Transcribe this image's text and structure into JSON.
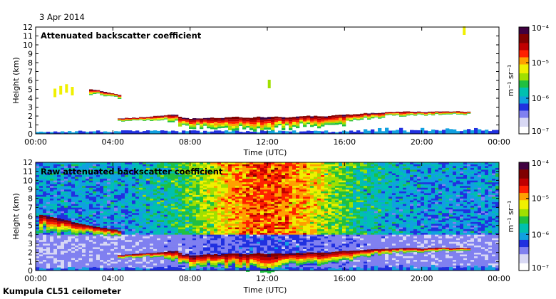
{
  "date_label": "3 Apr 2014",
  "instrument_label": "Kumpula CL51 ceilometer",
  "colors": {
    "colormap": [
      "#ffffff",
      "#d8d8f4",
      "#8080f0",
      "#2030e0",
      "#10a0e0",
      "#00c0b0",
      "#20c040",
      "#a0e000",
      "#f0f000",
      "#ffa000",
      "#ff2000",
      "#c00000",
      "#800000",
      "#400040"
    ],
    "frame": "#000000"
  },
  "chart_data": [
    {
      "type": "heatmap",
      "title": "Attenuated backscatter coefficient",
      "xlabel": "Time (UTC)",
      "ylabel": "Height (km)",
      "x_ticks": [
        "00:00",
        "04:00",
        "08:00",
        "12:00",
        "16:00",
        "20:00",
        "00:00"
      ],
      "y_ticks": [
        "0",
        "1",
        "2",
        "3",
        "4",
        "5",
        "6",
        "7",
        "8",
        "9",
        "10",
        "11",
        "12"
      ],
      "xlim_hours": [
        0,
        24
      ],
      "ylim_km": [
        0,
        12
      ],
      "colorbar": {
        "label": "m⁻¹ sr⁻¹",
        "scale": "log",
        "range": [
          1e-07,
          0.0001
        ],
        "tick_labels": [
          "10⁻⁴",
          "10⁻⁵",
          "10⁻⁶",
          "10⁻⁷"
        ]
      },
      "layers": [
        {
          "hours": [
            2.9,
            3.2,
            3.4,
            3.6,
            3.9,
            4.1,
            4.3
          ],
          "top_km": [
            5.0,
            4.9,
            4.8,
            4.7,
            4.6,
            4.5,
            4.4
          ],
          "thickness_km": [
            0.5,
            0.5,
            0.45,
            0.45,
            0.4,
            0.4,
            0.35
          ]
        },
        {
          "hours": [
            4.3,
            5.0,
            5.8,
            6.3,
            6.8,
            7.2,
            7.6,
            8.0,
            8.5,
            9.0,
            9.5,
            10.0,
            10.5,
            11.0,
            11.5,
            12.0,
            12.5,
            13.0,
            13.5,
            14.0,
            14.5,
            15.0,
            15.5,
            16.0,
            16.5,
            17.0,
            17.5,
            18.0,
            18.5,
            19.0,
            19.5,
            20.0,
            20.5,
            21.0,
            21.5,
            22.0,
            22.5
          ],
          "top_km": [
            1.7,
            1.8,
            1.9,
            2.0,
            2.1,
            2.2,
            1.8,
            1.7,
            1.75,
            1.8,
            1.8,
            1.85,
            1.9,
            1.8,
            1.9,
            1.85,
            1.9,
            1.85,
            1.95,
            2.0,
            2.0,
            1.95,
            2.1,
            2.15,
            2.2,
            2.3,
            2.35,
            2.4,
            2.45,
            2.5,
            2.5,
            2.45,
            2.5,
            2.55,
            2.5,
            2.5,
            2.45
          ],
          "thickness_km": [
            0.25,
            0.3,
            0.35,
            0.45,
            0.6,
            0.9,
            1.0,
            1.1,
            1.0,
            1.0,
            1.2,
            1.4,
            1.3,
            1.5,
            1.5,
            1.7,
            1.4,
            1.2,
            1.1,
            1.0,
            1.1,
            1.2,
            1.2,
            1.0,
            0.8,
            0.7,
            0.55,
            0.5,
            0.45,
            0.45,
            0.45,
            0.4,
            0.35,
            0.3,
            0.3,
            0.3,
            0.25
          ]
        }
      ],
      "scatter": [
        {
          "hours": [
            1.0,
            1.3,
            1.6,
            1.9
          ],
          "heights_km": [
            4.6,
            4.9,
            5.1,
            4.8
          ]
        },
        {
          "hours": [
            12.1
          ],
          "heights_km": [
            5.6
          ]
        },
        {
          "hours": [
            22.2
          ],
          "heights_km": [
            11.6
          ]
        }
      ]
    },
    {
      "type": "heatmap",
      "title": "Raw attenuated backscatter coefficient",
      "xlabel": "Time (UTC)",
      "ylabel": "Height (km)",
      "x_ticks": [
        "00:00",
        "04:00",
        "08:00",
        "12:00",
        "16:00",
        "20:00",
        "00:00"
      ],
      "y_ticks": [
        "0",
        "1",
        "2",
        "3",
        "4",
        "5",
        "6",
        "7",
        "8",
        "9",
        "10",
        "11",
        "12"
      ],
      "xlim_hours": [
        0,
        24
      ],
      "ylim_km": [
        0,
        12
      ],
      "colorbar": {
        "label": "m⁻¹ sr⁻¹",
        "scale": "log",
        "range": [
          1e-07,
          0.0001
        ],
        "tick_labels": [
          "10⁻⁴",
          "10⁻⁵",
          "10⁻⁶",
          "10⁻⁷"
        ]
      },
      "layers": [
        {
          "hours": [
            0.3,
            0.9,
            1.5,
            2.1,
            2.7,
            3.3,
            3.9,
            4.3
          ],
          "top_km": [
            6.2,
            5.9,
            5.6,
            5.3,
            5.0,
            4.8,
            4.6,
            4.4
          ],
          "thickness_km": [
            1.6,
            1.6,
            1.4,
            1.2,
            1.0,
            0.8,
            0.6,
            0.5
          ]
        },
        {
          "hours": [
            4.3,
            5.0,
            5.8,
            6.3,
            6.8,
            7.2,
            7.6,
            8.0,
            8.5,
            9.0,
            9.5,
            10.0,
            10.5,
            11.0,
            11.5,
            12.0,
            12.5,
            13.0,
            13.5,
            14.0,
            14.5,
            15.0,
            15.5,
            16.0,
            16.5,
            17.0,
            17.5,
            18.0,
            18.5,
            19.0,
            19.5,
            20.0,
            20.5,
            21.0,
            21.5,
            22.0,
            22.5
          ],
          "top_km": [
            1.7,
            1.8,
            1.9,
            2.0,
            2.1,
            2.2,
            1.8,
            1.7,
            1.75,
            1.8,
            1.8,
            1.85,
            1.9,
            1.8,
            1.9,
            1.85,
            1.9,
            1.85,
            1.95,
            2.0,
            2.0,
            1.95,
            2.1,
            2.15,
            2.2,
            2.3,
            2.35,
            2.4,
            2.45,
            2.5,
            2.5,
            2.45,
            2.5,
            2.55,
            2.5,
            2.5,
            2.45
          ],
          "thickness_km": [
            0.3,
            0.35,
            0.4,
            0.5,
            0.7,
            1.0,
            1.1,
            1.2,
            1.1,
            1.1,
            1.3,
            1.5,
            1.4,
            1.6,
            1.6,
            1.8,
            1.5,
            1.3,
            1.2,
            1.1,
            1.2,
            1.3,
            1.3,
            1.1,
            0.9,
            0.8,
            0.6,
            0.55,
            0.5,
            0.5,
            0.5,
            0.45,
            0.4,
            0.35,
            0.35,
            0.35,
            0.3
          ]
        }
      ],
      "scatter": []
    }
  ]
}
